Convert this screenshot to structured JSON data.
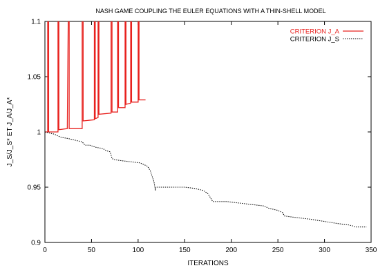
{
  "chart_data": {
    "type": "line",
    "title": "NASH GAME COUPLING THE EULER EQUATIONS WITH A THIN-SHELL MODEL",
    "xlabel": "ITERATIONS",
    "ylabel": "J_S/J_S* ET J_A/J_A*",
    "xlim": [
      0,
      350
    ],
    "ylim": [
      0.9,
      1.1
    ],
    "xticks": [
      0,
      50,
      100,
      150,
      200,
      250,
      300,
      350
    ],
    "yticks": [
      0.9,
      0.95,
      1,
      1.05,
      1.1
    ],
    "xtick_labels": [
      "0",
      "50",
      "100",
      "150",
      "200",
      "250",
      "300",
      "350"
    ],
    "ytick_labels": [
      "0.9",
      "0.95",
      "1",
      "1.05",
      "1.1"
    ],
    "grid": false,
    "legend_position": "top-right",
    "series": [
      {
        "name": "CRITERION J_A",
        "color": "#e8211e",
        "style": "solid",
        "points": [
          [
            0,
            1.0
          ],
          [
            3,
            1.0
          ],
          [
            3,
            1.1
          ],
          [
            4,
            1.1
          ],
          [
            4,
            1.0
          ],
          [
            14,
            1.0
          ],
          [
            14,
            1.1
          ],
          [
            15,
            1.1
          ],
          [
            15,
            1.002
          ],
          [
            24,
            1.003
          ],
          [
            25,
            1.1
          ],
          [
            26,
            1.1
          ],
          [
            26,
            1.003
          ],
          [
            40,
            1.003
          ],
          [
            40,
            1.1
          ],
          [
            41,
            1.1
          ],
          [
            41,
            1.01
          ],
          [
            53,
            1.011
          ],
          [
            53,
            1.1
          ],
          [
            54,
            1.1
          ],
          [
            54,
            1.012
          ],
          [
            57,
            1.013
          ],
          [
            57,
            1.1
          ],
          [
            58,
            1.1
          ],
          [
            58,
            1.016
          ],
          [
            71,
            1.017
          ],
          [
            71,
            1.1
          ],
          [
            72,
            1.1
          ],
          [
            72,
            1.018
          ],
          [
            78,
            1.018
          ],
          [
            78,
            1.1
          ],
          [
            79,
            1.1
          ],
          [
            79,
            1.022
          ],
          [
            86,
            1.022
          ],
          [
            86,
            1.1
          ],
          [
            87,
            1.1
          ],
          [
            87,
            1.025
          ],
          [
            92,
            1.026
          ],
          [
            92,
            1.1
          ],
          [
            93,
            1.1
          ],
          [
            93,
            1.027
          ],
          [
            100,
            1.027
          ],
          [
            100,
            1.1
          ],
          [
            101,
            1.1
          ],
          [
            101,
            1.029
          ],
          [
            108,
            1.029
          ]
        ]
      },
      {
        "name": "CRITERION J_S",
        "color": "#000000",
        "style": "dotted",
        "points": [
          [
            0,
            1.0
          ],
          [
            5,
            0.999
          ],
          [
            10,
            0.998
          ],
          [
            15,
            0.996
          ],
          [
            18,
            0.995
          ],
          [
            25,
            0.994
          ],
          [
            30,
            0.993
          ],
          [
            40,
            0.991
          ],
          [
            43,
            0.988
          ],
          [
            48,
            0.988
          ],
          [
            55,
            0.986
          ],
          [
            62,
            0.985
          ],
          [
            66,
            0.983
          ],
          [
            70,
            0.982
          ],
          [
            72,
            0.976
          ],
          [
            74,
            0.975
          ],
          [
            82,
            0.974
          ],
          [
            92,
            0.973
          ],
          [
            102,
            0.972
          ],
          [
            110,
            0.969
          ],
          [
            113,
            0.965
          ],
          [
            115,
            0.96
          ],
          [
            117,
            0.955
          ],
          [
            118,
            0.95
          ],
          [
            118.5,
            0.947
          ],
          [
            119,
            0.95
          ],
          [
            125,
            0.95
          ],
          [
            135,
            0.95
          ],
          [
            150,
            0.95
          ],
          [
            160,
            0.949
          ],
          [
            170,
            0.947
          ],
          [
            175,
            0.944
          ],
          [
            178,
            0.94
          ],
          [
            180,
            0.937
          ],
          [
            195,
            0.937
          ],
          [
            205,
            0.936
          ],
          [
            215,
            0.935
          ],
          [
            225,
            0.934
          ],
          [
            235,
            0.933
          ],
          [
            240,
            0.931
          ],
          [
            250,
            0.929
          ],
          [
            255,
            0.927
          ],
          [
            257,
            0.924
          ],
          [
            265,
            0.923
          ],
          [
            275,
            0.922
          ],
          [
            285,
            0.921
          ],
          [
            300,
            0.919
          ],
          [
            315,
            0.917
          ],
          [
            325,
            0.916
          ],
          [
            330,
            0.915
          ],
          [
            333,
            0.914
          ],
          [
            345,
            0.914
          ]
        ]
      }
    ]
  }
}
